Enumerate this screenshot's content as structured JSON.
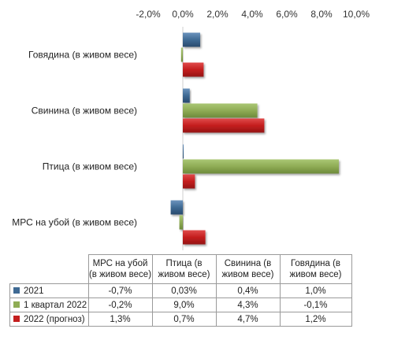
{
  "chart_data": {
    "type": "bar",
    "orientation": "horizontal",
    "categories": [
      "МРС на убой (в живом весе)",
      "Птица (в живом весе)",
      "Свинина (в живом весе)",
      "Говядина (в живом весе)"
    ],
    "series": [
      {
        "name": "2021",
        "color": "#3f6a94",
        "values": [
          -0.7,
          0.03,
          0.4,
          1.0
        ],
        "labels": [
          "-0,7%",
          "0,03%",
          "0,4%",
          "1,0%"
        ]
      },
      {
        "name": "1 квартал 2022",
        "color": "#8fac55",
        "values": [
          -0.2,
          9.0,
          4.3,
          -0.1
        ],
        "labels": [
          "-0,2%",
          "9,0%",
          "4,3%",
          "-0,1%"
        ]
      },
      {
        "name": "2022 (прогноз)",
        "color": "#c41e1e",
        "values": [
          1.3,
          0.7,
          4.7,
          1.2
        ],
        "labels": [
          "1,3%",
          "0,7%",
          "4,7%",
          "1,2%"
        ]
      }
    ],
    "xlim": [
      -2,
      10
    ],
    "xticks": [
      -2,
      0,
      2,
      4,
      6,
      8,
      10
    ],
    "xtick_labels": [
      "-2,0%",
      "0,0%",
      "2,0%",
      "4,0%",
      "6,0%",
      "8,0%",
      "10,0%"
    ],
    "axis_position": "top",
    "grid": false,
    "data_table": true,
    "table_headers": [
      "МРС на убой (в живом весе)",
      "Птица (в живом весе)",
      "Свинина (в живом весе)",
      "Говядина (в живом весе)"
    ]
  }
}
